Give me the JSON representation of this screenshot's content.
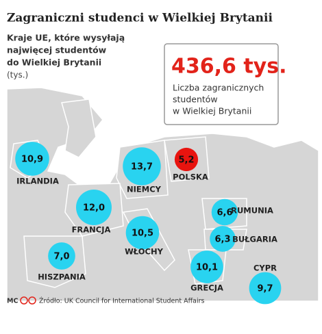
{
  "chart_data": {
    "type": "bubble_map",
    "title": "Zagraniczni studenci w Wielkiej Brytanii",
    "subtitle": [
      "Kraje UE, które wysyłają",
      "najwięcej studentów",
      "do Wielkiej Brytanii"
    ],
    "unit": "(tys.)",
    "callout": {
      "value": 436.6,
      "value_label": "436,6 tys.",
      "text": [
        "Liczba zagranicznych",
        "studentów",
        "w Wielkiej Brytanii"
      ]
    },
    "categories": [
      "IRLANDIA",
      "NIEMCY",
      "POLSKA",
      "FRANCJA",
      "RUMUNIA",
      "BUŁGARIA",
      "HISZPANIA",
      "WŁOCHY",
      "GRECJA",
      "CYPR"
    ],
    "values": [
      10.9,
      13.7,
      5.2,
      12.0,
      6.6,
      6.3,
      7.0,
      10.5,
      10.1,
      9.7
    ],
    "value_labels": [
      "10,9",
      "13,7",
      "5,2",
      "12,0",
      "6,6",
      "6,3",
      "7,0",
      "10,5",
      "10,1",
      "9,7"
    ],
    "colors": [
      "#29d3f0",
      "#29d3f0",
      "#e8140f",
      "#29d3f0",
      "#29d3f0",
      "#29d3f0",
      "#29d3f0",
      "#29d3f0",
      "#29d3f0",
      "#29d3f0"
    ],
    "credit": "MC",
    "source": "Źródło: UK Council for International Student Affairs"
  }
}
